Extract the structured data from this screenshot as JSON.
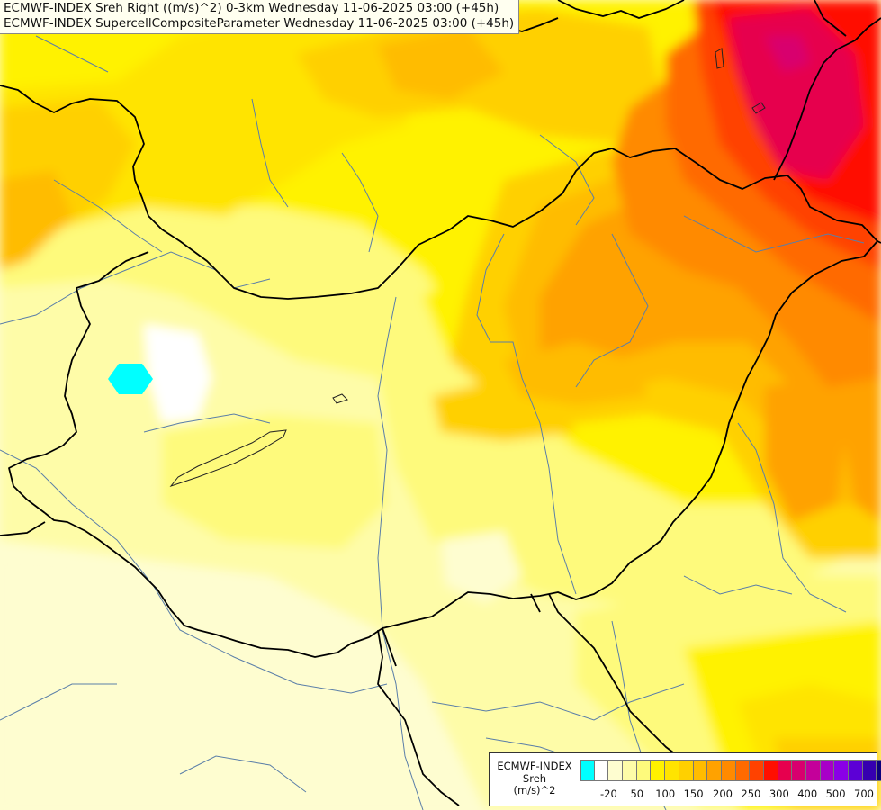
{
  "title": {
    "line1": "ECMWF-INDEX Sreh Right ((m/s)^2) 0-3km Wednesday 11-06-2025 03:00 (+45h)",
    "line2": "ECMWF-INDEX SupercellCompositeParameter Wednesday 11-06-2025 03:00 (+45h)"
  },
  "legend": {
    "line1": "ECMWF-INDEX",
    "line2": "Sreh",
    "line3": "(m/s)^2",
    "colors": [
      "#00ffff",
      "#ffffff",
      "#fefdd0",
      "#fefca8",
      "#fefa7c",
      "#fff200",
      "#ffe400",
      "#ffd000",
      "#ffbc00",
      "#ffa200",
      "#ff8a00",
      "#ff6a00",
      "#ff4200",
      "#ff0f00",
      "#e6004e",
      "#d8006e",
      "#c4009a",
      "#a800c8",
      "#8a00e6",
      "#5c00d6",
      "#3600b0",
      "#0c007c"
    ],
    "ticks": [
      {
        "label": "-20",
        "index": 1
      },
      {
        "label": "50",
        "index": 3
      },
      {
        "label": "100",
        "index": 5
      },
      {
        "label": "150",
        "index": 7
      },
      {
        "label": "200",
        "index": 9
      },
      {
        "label": "250",
        "index": 11
      },
      {
        "label": "300",
        "index": 13
      },
      {
        "label": "400",
        "index": 15
      },
      {
        "label": "500",
        "index": 17
      },
      {
        "label": "700",
        "index": 19
      }
    ]
  },
  "colors": {
    "background": "#fefdd0",
    "border": "#000000",
    "river": "#5a7ea8"
  }
}
